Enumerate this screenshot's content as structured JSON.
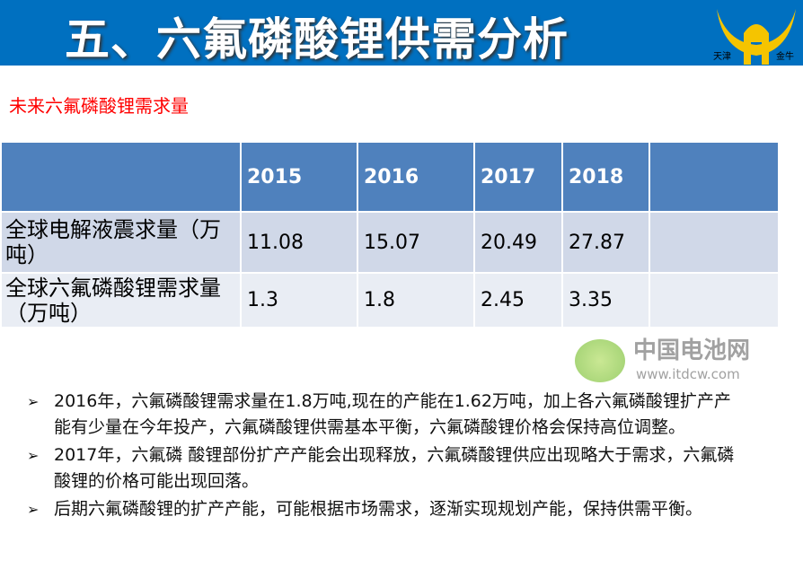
{
  "header": {
    "title": "五、六氟磷酸锂供需分析",
    "logo_left": "天津",
    "logo_right": "金牛",
    "color": "#0070c0"
  },
  "subtitle": "未来六氟磷酸锂需求量",
  "table": {
    "columns": [
      "",
      "2015",
      "2016",
      "2017",
      "2018",
      ""
    ],
    "rows": [
      {
        "label": "全球电解液震求量（万吨）",
        "values": [
          "11.08",
          "15.07",
          "20.49",
          "27.87",
          ""
        ]
      },
      {
        "label": "全球六氟磷酸锂需求量（万吨）",
        "values": [
          "1.3",
          "1.8",
          "2.45",
          "3.35",
          ""
        ]
      }
    ]
  },
  "bullets": [
    "2016年，六氟磷酸锂需求量在1.8万吨,现在的产能在1.62万吨，加上各六氟磷酸锂扩产产能有少量在今年投产，六氟磷酸锂供需基本平衡，六氟磷酸锂价格会保持高位调整。",
    "2017年，六氟磷 酸锂部份扩产产能会出现释放，六氟磷酸锂供应出现略大于需求，六氟磷酸锂的价格可能出现回落。",
    "后期六氟磷酸锂的扩产产能，可能根据市场需求，逐渐实现规划产能，保持供需平衡。"
  ],
  "watermark": {
    "name": "中国电池网",
    "url": "www.itdcw.com"
  }
}
